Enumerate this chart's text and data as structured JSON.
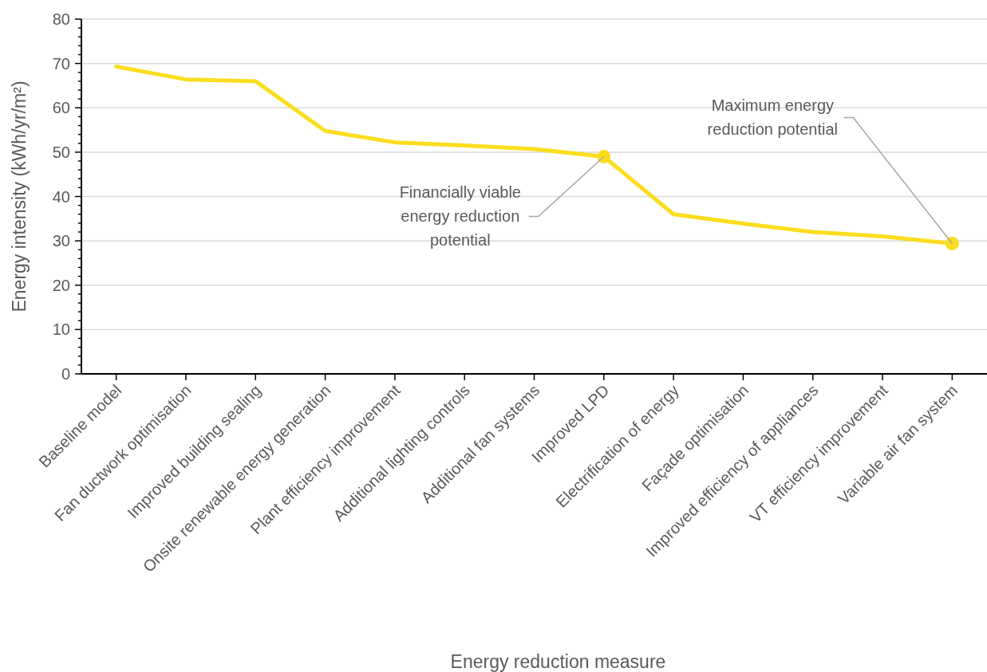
{
  "chart_data": {
    "type": "line",
    "xlabel": "Energy reduction measure",
    "ylabel": "Energy intensity (kWh/yr/m²)",
    "categories": [
      "Baseline model",
      "Fan ductwork optimisation",
      "Improved building sealing",
      "Onsite renewable energy generation",
      "Plant efficiency improvement",
      "Additional lighting controls",
      "Additional fan systems",
      "Improved LPD",
      "Electrification of energy",
      "Façade optimisation",
      "Improved efficiency of appliances",
      "VT efficiency improvement",
      "Variable air fan system"
    ],
    "series": [
      {
        "color": "#fadd1e",
        "values": [
          69.3,
          66.4,
          66,
          54.8,
          52.2,
          51.5,
          50.7,
          49,
          36,
          33.9,
          32,
          31,
          29.4
        ]
      },
      {
        "type": "scatter",
        "color": "#fadd1e",
        "x": [
          "Improved LPD",
          "Variable air fan system"
        ],
        "values": [
          49,
          29.4
        ]
      }
    ],
    "ylim": [
      0,
      80
    ],
    "yticks": [
      0,
      {
        "value": 2,
        "label": null
      },
      {
        "value": 4,
        "label": null
      },
      {
        "value": 6,
        "label": null
      },
      {
        "value": 8,
        "label": null
      },
      10,
      {
        "value": 12,
        "label": null
      },
      {
        "value": 14,
        "label": null
      },
      {
        "value": 16,
        "label": null
      },
      {
        "value": 18,
        "label": null
      },
      20,
      {
        "value": 22,
        "label": null
      },
      {
        "value": 24,
        "label": null
      },
      {
        "value": 26,
        "label": null
      },
      {
        "value": 28,
        "label": null
      },
      30,
      {
        "value": 32,
        "label": null
      },
      {
        "value": 34,
        "label": null
      },
      {
        "value": 36,
        "label": null
      },
      {
        "value": 38,
        "label": null
      },
      40,
      {
        "value": 42,
        "label": null
      },
      {
        "value": 44,
        "label": null
      },
      {
        "value": 46,
        "label": null
      },
      {
        "value": 48,
        "label": null
      },
      50,
      {
        "value": 52,
        "label": null
      },
      {
        "value": 54,
        "label": null
      },
      {
        "value": 56,
        "label": null
      },
      {
        "value": 58,
        "label": null
      },
      60,
      {
        "value": 62,
        "label": null
      },
      {
        "value": 64,
        "label": null
      },
      {
        "value": 66,
        "label": null
      },
      {
        "value": 68,
        "label": null
      },
      70,
      {
        "value": 72,
        "label": null
      },
      {
        "value": 74,
        "label": null
      },
      {
        "value": 76,
        "label": null
      },
      {
        "value": 78,
        "label": null
      },
      80
    ],
    "grid": "y",
    "line_style": "solid",
    "annotations": [
      {
        "text": "Financially viable energy reduction potential",
        "x": "Improved LPD",
        "y": 49
      },
      {
        "text": "Maximum energy reduction potential",
        "x": "Variable air fan system",
        "y": 29.4
      }
    ]
  }
}
